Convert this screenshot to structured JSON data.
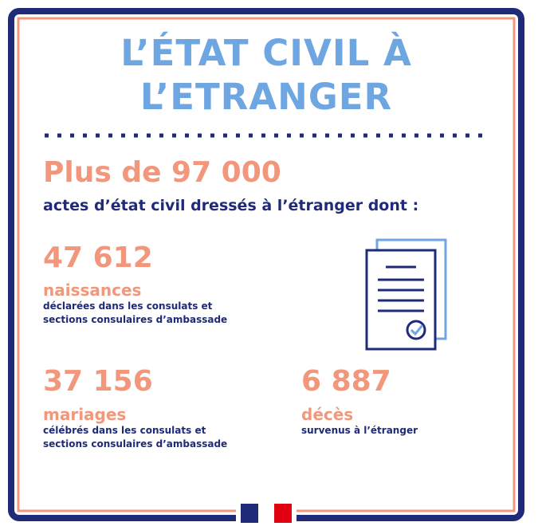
{
  "header": {
    "title_lines": [
      "L’ÉTAT CIVIL À",
      "L’ETRANGER"
    ]
  },
  "headline": {
    "number": "Plus de 97 000",
    "text": "actes d’état civil dressés à l’étranger dont :"
  },
  "stats": [
    {
      "number": "47 612",
      "label": "naissances",
      "description_lines": [
        "déclarées dans les consulats et",
        "sections consulaires d’ambassade"
      ]
    },
    {
      "number": "37 156",
      "label": "mariages",
      "description_lines": [
        "célébrés dans les consulats et",
        "sections consulaires d’ambassade"
      ]
    },
    {
      "number": "6 887",
      "label": "décès",
      "description_lines": [
        "survenus à l’étranger"
      ]
    }
  ]
}
